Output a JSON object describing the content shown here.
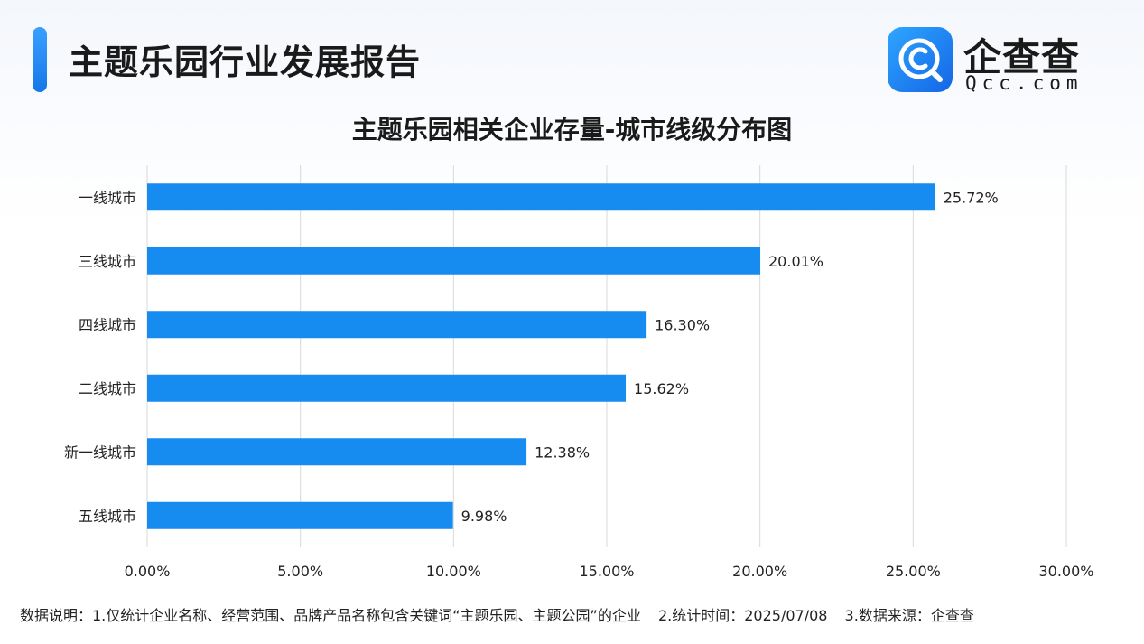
{
  "header": {
    "title": "主题乐园行业发展报告",
    "accent_color": "#1677e8"
  },
  "logo": {
    "icon": "qcc-logo-icon",
    "name": "企查查",
    "domain": "Qcc.com"
  },
  "chart_data": {
    "type": "bar",
    "orientation": "horizontal",
    "title": "主题乐园相关企业存量-城市线级分布图",
    "categories": [
      "一线城市",
      "三线城市",
      "四线城市",
      "二线城市",
      "新一线城市",
      "五线城市"
    ],
    "values": [
      25.72,
      20.01,
      16.3,
      15.62,
      12.38,
      9.98
    ],
    "value_labels": [
      "25.72%",
      "20.01%",
      "16.30%",
      "15.62%",
      "12.38%",
      "9.98%"
    ],
    "xlim": [
      0,
      30
    ],
    "x_ticks": [
      "0.00%",
      "5.00%",
      "10.00%",
      "15.00%",
      "20.00%",
      "25.00%",
      "30.00%"
    ],
    "grid": "vertical",
    "legend": "none",
    "bar_color": "#168cf0"
  },
  "footnote": {
    "part1": "数据说明：1.仅统计企业名称、经营范围、品牌产品名称包含关键词“主题乐园、主题公园”的企业",
    "part2": "2.统计时间：2025/07/08",
    "part3": "3.数据来源：企查查"
  }
}
